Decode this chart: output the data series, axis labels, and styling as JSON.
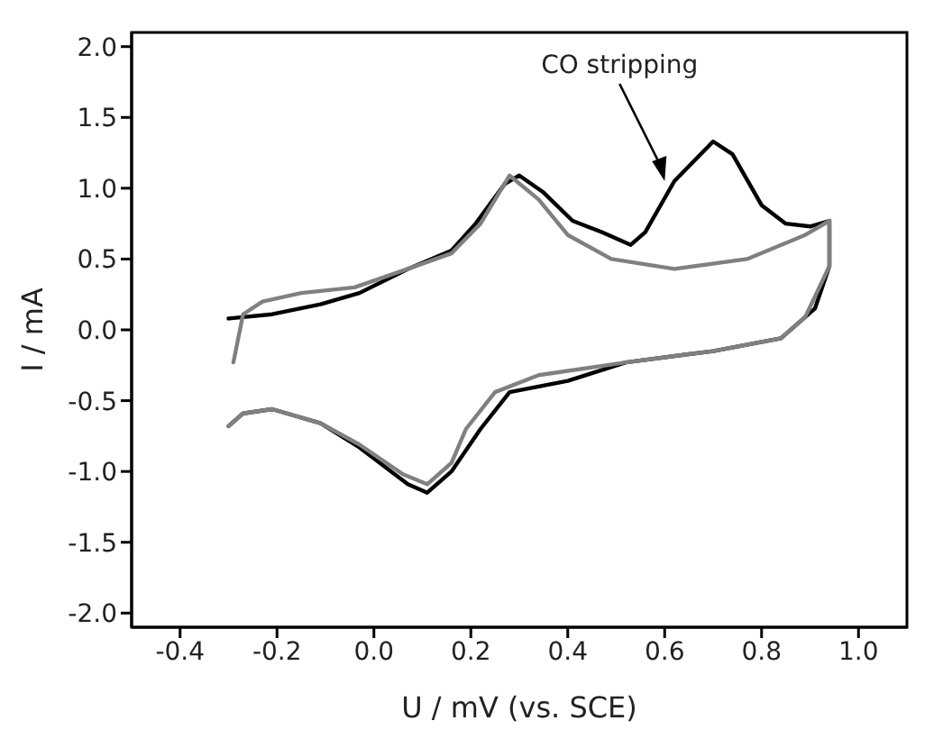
{
  "chart_data": {
    "type": "line",
    "xlabel": "U / mV (vs. SCE)",
    "ylabel": "I / mA",
    "xlim": [
      -0.5,
      1.1
    ],
    "xticks": [
      {
        "value": -0.4,
        "label": "-0.4"
      },
      {
        "value": -0.2,
        "label": "-0.2"
      },
      {
        "value": 0,
        "label": "0.0"
      },
      {
        "value": 0.2,
        "label": "0.2"
      },
      {
        "value": 0.4,
        "label": "0.4"
      },
      {
        "value": 0.6,
        "label": "0.6"
      },
      {
        "value": 0.8,
        "label": "0.8"
      },
      {
        "value": 1,
        "label": "1.0"
      }
    ],
    "ylim": [
      -2.1,
      2.1
    ],
    "yticks": [
      {
        "value": -2,
        "label": "-2.0"
      },
      {
        "value": -1.5,
        "label": "-1.5"
      },
      {
        "value": -1,
        "label": "-1.0"
      },
      {
        "value": -0.5,
        "label": "-0.5"
      },
      {
        "value": 0,
        "label": "0.0"
      },
      {
        "value": 0.5,
        "label": "0.5"
      },
      {
        "value": 1,
        "label": "1.0"
      },
      {
        "value": 1.5,
        "label": "1.5"
      },
      {
        "value": 2,
        "label": "2.0"
      }
    ],
    "grid": false,
    "legend": false,
    "marker": "none",
    "line_style": "solid",
    "annotations": [
      {
        "text": "CO stripping",
        "x": 0.6,
        "y": 1.05
      }
    ],
    "series": [
      {
        "color": "#000000",
        "x": [
          -0.3,
          -0.21,
          -0.11,
          -0.03,
          0.07,
          0.16,
          0.21,
          0.27,
          0.3,
          0.35,
          0.41,
          0.47,
          0.53,
          0.56,
          0.62,
          0.7,
          0.74,
          0.8,
          0.85,
          0.9,
          0.94,
          0.94,
          0.91,
          0.84,
          0.7,
          0.52,
          0.4,
          0.28,
          0.22,
          0.16,
          0.11,
          0.07,
          -0.03,
          -0.11,
          -0.21,
          -0.27,
          -0.3
        ],
        "values": [
          0.08,
          0.11,
          0.18,
          0.26,
          0.43,
          0.56,
          0.75,
          1.03,
          1.09,
          0.97,
          0.77,
          0.69,
          0.6,
          0.69,
          1.05,
          1.33,
          1.24,
          0.88,
          0.75,
          0.73,
          0.77,
          0.45,
          0.15,
          -0.06,
          -0.15,
          -0.23,
          -0.36,
          -0.44,
          -0.7,
          -1.0,
          -1.15,
          -1.09,
          -0.83,
          -0.66,
          -0.56,
          -0.59,
          -0.68
        ]
      },
      {
        "color": "#808080",
        "x": [
          -0.29,
          -0.27,
          -0.23,
          -0.15,
          -0.04,
          0.07,
          0.16,
          0.22,
          0.28,
          0.34,
          0.4,
          0.49,
          0.62,
          0.77,
          0.89,
          0.94,
          0.94,
          0.89,
          0.84,
          0.7,
          0.52,
          0.34,
          0.25,
          0.19,
          0.16,
          0.11,
          0.06,
          -0.03,
          -0.11,
          -0.21,
          -0.27,
          -0.3
        ],
        "values": [
          -0.23,
          0.11,
          0.2,
          0.26,
          0.3,
          0.43,
          0.54,
          0.75,
          1.09,
          0.92,
          0.67,
          0.5,
          0.43,
          0.5,
          0.67,
          0.77,
          0.45,
          0.09,
          -0.06,
          -0.15,
          -0.23,
          -0.32,
          -0.44,
          -0.7,
          -0.94,
          -1.09,
          -1.02,
          -0.81,
          -0.66,
          -0.56,
          -0.59,
          -0.68
        ]
      }
    ]
  }
}
